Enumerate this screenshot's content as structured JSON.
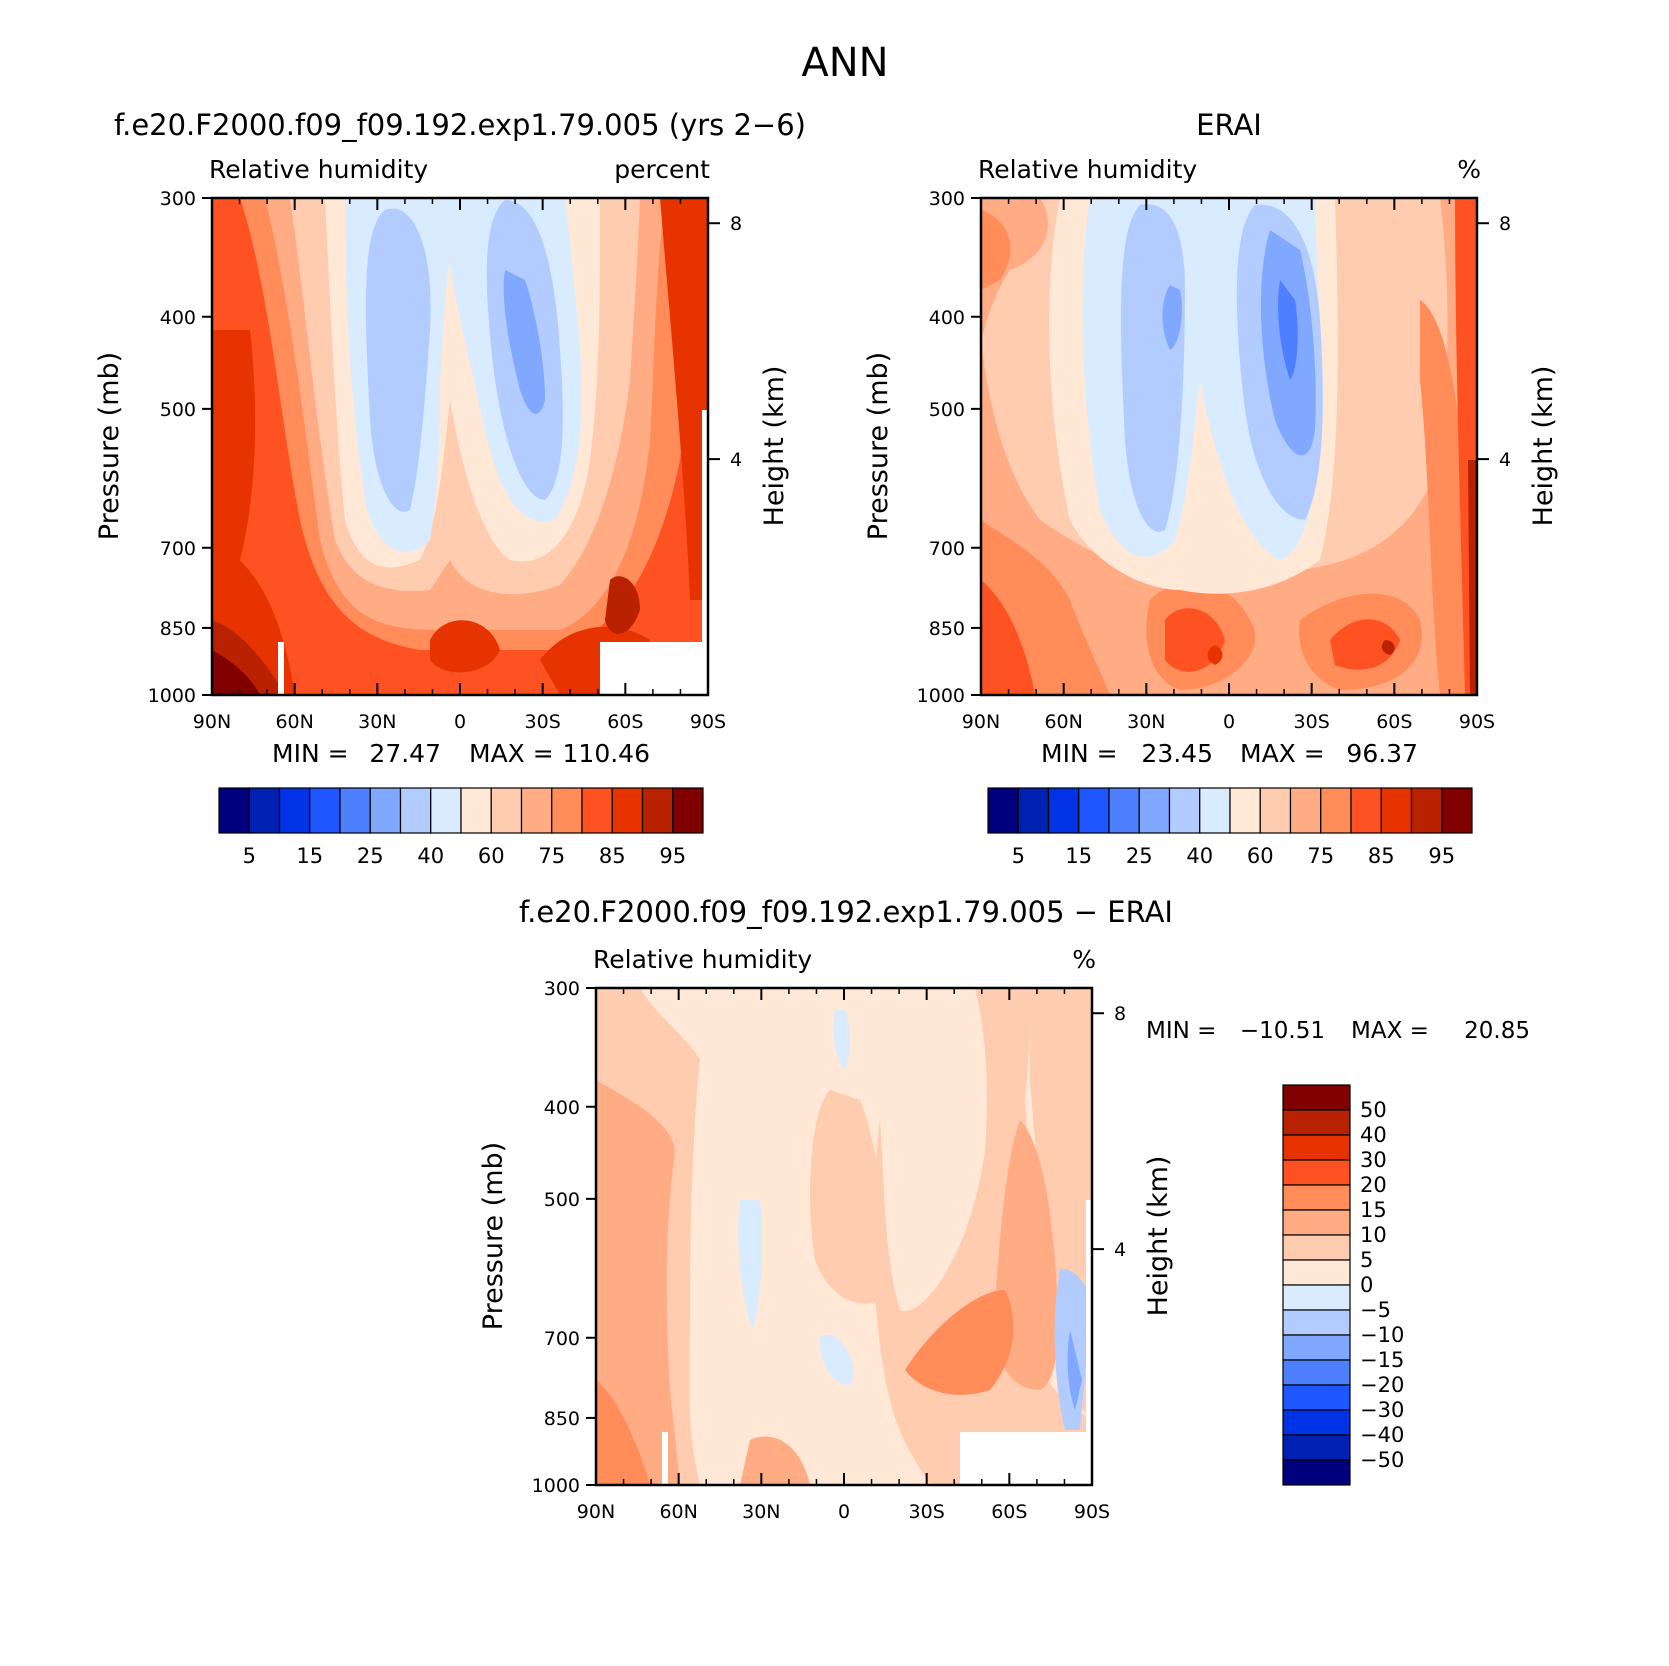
{
  "page_title": "ANN",
  "chart_data": [
    {
      "type": "heatmap",
      "id": "model",
      "title": "f.e20.F2000.f09_f09.192.exp1.79.005 (yrs 2−6)",
      "left_label": "Relative humidity",
      "right_label": "percent",
      "ylabel": "Pressure (mb)",
      "ylabel_right": "Height (km)",
      "xlabel": "",
      "x_ticks": [
        "90N",
        "60N",
        "30N",
        "0",
        "30S",
        "60S",
        "90S"
      ],
      "y_ticks": [
        "300",
        "400",
        "500",
        "700",
        "850",
        "1000"
      ],
      "y_right_ticks": [
        "8",
        "4"
      ],
      "xlim": [
        90,
        -90
      ],
      "ylim": [
        1000,
        300
      ],
      "min_max_text": {
        "min_label": "MIN =",
        "min": "27.47",
        "max_label": "MAX =",
        "max": "110.46"
      },
      "colorbar": {
        "colors": [
          "#00007f",
          "#0021b2",
          "#0033e5",
          "#1e56ff",
          "#4d7fff",
          "#80a8ff",
          "#b3ccff",
          "#d9ebff",
          "#ffe8d6",
          "#ffccb0",
          "#ffac85",
          "#ff8c59",
          "#ff5222",
          "#e63300",
          "#b82200",
          "#800000"
        ],
        "labels": [
          "5",
          "15",
          "25",
          "40",
          "60",
          "75",
          "85",
          "95"
        ]
      },
      "contour_levels": [
        5,
        10,
        15,
        20,
        25,
        30,
        35,
        40,
        50,
        60,
        65,
        70,
        75,
        80,
        85,
        90,
        95
      ],
      "description": "Zonal-mean relative humidity, latitude vs pressure"
    },
    {
      "type": "heatmap",
      "id": "obs",
      "title": "ERAI",
      "left_label": "Relative humidity",
      "right_label": "%",
      "ylabel": "Pressure (mb)",
      "ylabel_right": "Height (km)",
      "xlabel": "",
      "x_ticks": [
        "90N",
        "60N",
        "30N",
        "0",
        "30S",
        "60S",
        "90S"
      ],
      "y_ticks": [
        "300",
        "400",
        "500",
        "700",
        "850",
        "1000"
      ],
      "y_right_ticks": [
        "8",
        "4"
      ],
      "xlim": [
        90,
        -90
      ],
      "ylim": [
        1000,
        300
      ],
      "min_max_text": {
        "min_label": "MIN =",
        "min": "23.45",
        "max_label": "MAX =",
        "max": "96.37"
      },
      "colorbar": {
        "colors": [
          "#00007f",
          "#0021b2",
          "#0033e5",
          "#1e56ff",
          "#4d7fff",
          "#80a8ff",
          "#b3ccff",
          "#d9ebff",
          "#ffe8d6",
          "#ffccb0",
          "#ffac85",
          "#ff8c59",
          "#ff5222",
          "#e63300",
          "#b82200",
          "#800000"
        ],
        "labels": [
          "5",
          "15",
          "25",
          "40",
          "60",
          "75",
          "85",
          "95"
        ]
      }
    },
    {
      "type": "heatmap",
      "id": "diff",
      "title": "f.e20.F2000.f09_f09.192.exp1.79.005 − ERAI",
      "left_label": "Relative humidity",
      "right_label": "%",
      "ylabel": "Pressure (mb)",
      "ylabel_right": "Height (km)",
      "xlabel": "",
      "x_ticks": [
        "90N",
        "60N",
        "30N",
        "0",
        "30S",
        "60S",
        "90S"
      ],
      "y_ticks": [
        "300",
        "400",
        "500",
        "700",
        "850",
        "1000"
      ],
      "y_right_ticks": [
        "8",
        "4"
      ],
      "xlim": [
        90,
        -90
      ],
      "ylim": [
        1000,
        300
      ],
      "min_max_text": {
        "min_label": "MIN =",
        "min": "−10.51",
        "max_label": "MAX =",
        "max": "20.85"
      },
      "colorbar": {
        "colors_top_to_bottom": [
          "#800000",
          "#b82200",
          "#e63300",
          "#ff5222",
          "#ff8c59",
          "#ffac85",
          "#ffccb0",
          "#ffe8d6",
          "#d9ebff",
          "#b3ccff",
          "#80a8ff",
          "#4d7fff",
          "#1e56ff",
          "#0033e5",
          "#0021b2",
          "#00007f"
        ],
        "labels_top_to_bottom": [
          "50",
          "40",
          "30",
          "20",
          "15",
          "10",
          "5",
          "0",
          "−5",
          "−10",
          "−15",
          "−20",
          "−30",
          "−40",
          "−50"
        ]
      }
    }
  ]
}
